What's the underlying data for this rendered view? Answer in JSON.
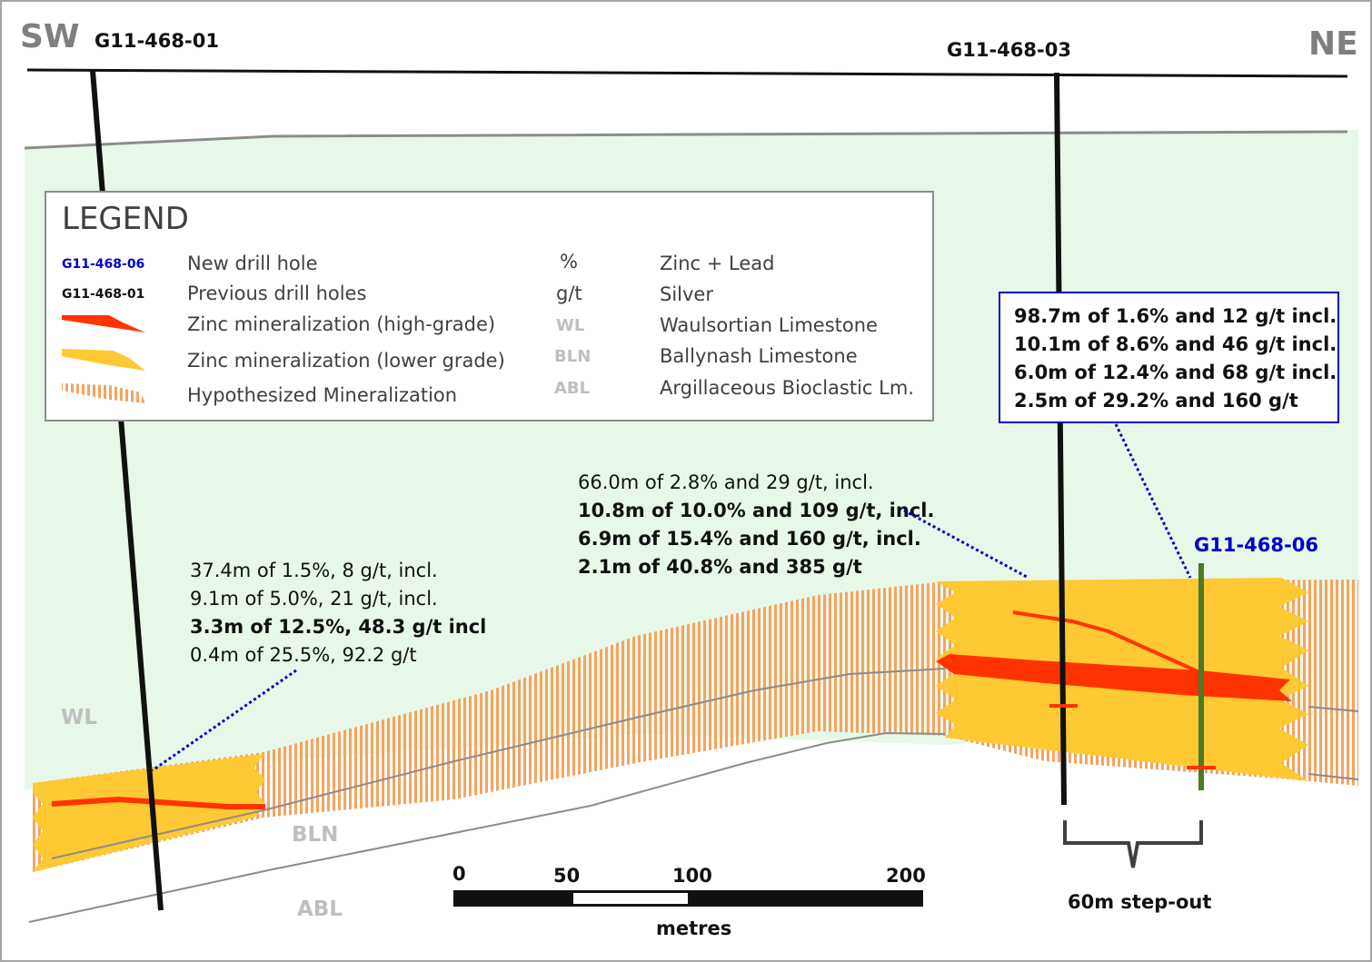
{
  "directions": {
    "sw": "SW",
    "ne": "NE"
  },
  "holes": {
    "left": "G11-468-01",
    "mid": "G11-468-03",
    "new": "G11-468-06"
  },
  "units": {
    "wl": "WL",
    "bln": "BLN",
    "abl": "ABL"
  },
  "legend": {
    "title": "LEGEND",
    "new_hole_sample": "G11-468-06",
    "new_hole": "New drill hole",
    "prev_hole_sample": "G11-468-01",
    "prev_holes": "Previous drill holes",
    "high_grade": "Zinc mineralization (high-grade)",
    "lower_grade": "Zinc mineralization  (lower grade)",
    "hypothesized": "Hypothesized Mineralization",
    "pct_symbol": "%",
    "pct_desc": "Zinc + Lead",
    "gt_symbol": "g/t",
    "gt_desc": "Silver",
    "wl_abbr": "WL",
    "wl_desc": "Waulsortian Limestone",
    "bln_abbr": "BLN",
    "bln_desc": "Ballynash Limestone",
    "abl_abbr": "ABL",
    "abl_desc": "Argillaceous Bioclastic Lm.",
    "colors": {
      "new_hole": "#0000cc",
      "high_grade": "#ff3300",
      "lower_grade": "#ffc933",
      "hypothesized": "#f4a460"
    }
  },
  "annotations": {
    "left": [
      "37.4m of 1.5%, 8 g/t, incl.",
      "9.1m of 5.0%, 21 g/t, incl.",
      "3.3m of 12.5%, 48.3 g/t incl",
      "0.4m of 25.5%, 92.2 g/t"
    ],
    "mid": [
      "66.0m of 2.8% and 29 g/t, incl.",
      "10.8m of 10.0% and 109 g/t, incl.",
      "6.9m of 15.4% and 160 g/t, incl.",
      "2.1m of 40.8% and 385 g/t"
    ],
    "box": [
      "98.7m of 1.6% and 12 g/t incl.",
      "10.1m of 8.6% and 46 g/t incl.",
      "6.0m of 12.4% and 68 g/t incl.",
      "2.5m of 29.2% and 160 g/t"
    ]
  },
  "scale_bar": {
    "ticks": [
      "0",
      "50",
      "100",
      "200"
    ],
    "unit": "metres"
  },
  "step_out": "60m step-out",
  "colors": {
    "background_wl": "#e8f8e8",
    "accent_blue": "#0000cc",
    "new_hole_green": "#4a7a2a"
  }
}
